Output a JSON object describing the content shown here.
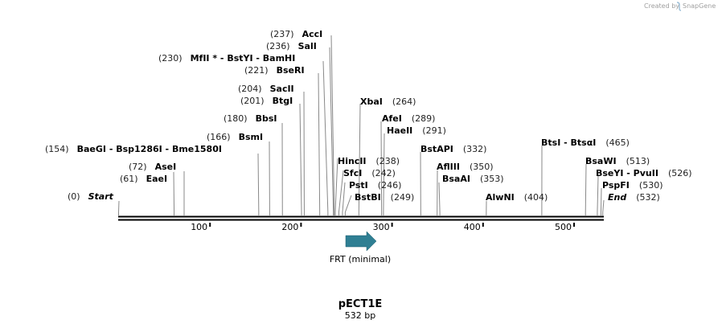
{
  "watermark": "Created by",
  "watermark_brand": "SnapGene",
  "plasmid": {
    "name": "pECT1E",
    "size_label": "532 bp",
    "length": 532
  },
  "colors": {
    "feature": "#2f7f93",
    "backbone": "#000000",
    "cutline": "#888888",
    "watermark": "#a0a0a0"
  },
  "ruler": {
    "ticks": [
      100,
      200,
      300,
      400,
      500
    ]
  },
  "feature": {
    "name": "FRT (minimal)",
    "start": 250,
    "end": 284,
    "direction": "forward"
  },
  "sites": [
    {
      "pos": "(0)",
      "name": "Start",
      "bp": 0,
      "italic": true
    },
    {
      "pos": "(61)",
      "name": "EaeI",
      "bp": 61
    },
    {
      "pos": "(72)",
      "name": "AseI",
      "bp": 72
    },
    {
      "pos": "(154)",
      "name": "BaeGI  -  Bsp1286I  -  Bme1580I",
      "bp": 154
    },
    {
      "pos": "(166)",
      "name": "BsmI",
      "bp": 166
    },
    {
      "pos": "(180)",
      "name": "BbsI",
      "bp": 180
    },
    {
      "pos": "(201)",
      "name": "BtgI",
      "bp": 201
    },
    {
      "pos": "(204)",
      "name": "SacII",
      "bp": 204
    },
    {
      "pos": "(221)",
      "name": "BseRI",
      "bp": 221
    },
    {
      "pos": "(230)",
      "name": "MfII *  -  BstYI  -  BamHI",
      "bp": 230
    },
    {
      "pos": "(236)",
      "name": "SalI",
      "bp": 236
    },
    {
      "pos": "(237)",
      "name": "AccI",
      "bp": 237
    },
    {
      "pos": "(238)",
      "name": "HincII",
      "bp": 238
    },
    {
      "pos": "(242)",
      "name": "SfcI",
      "bp": 242
    },
    {
      "pos": "(246)",
      "name": "PstI",
      "bp": 246
    },
    {
      "pos": "(249)",
      "name": "BstBI",
      "bp": 249
    },
    {
      "pos": "(264)",
      "name": "XbaI",
      "bp": 264
    },
    {
      "pos": "(289)",
      "name": "AfeI",
      "bp": 289
    },
    {
      "pos": "(291)",
      "name": "HaeII",
      "bp": 291
    },
    {
      "pos": "(332)",
      "name": "BstAPI",
      "bp": 332
    },
    {
      "pos": "(350)",
      "name": "AflIII",
      "bp": 350
    },
    {
      "pos": "(353)",
      "name": "BsaAI",
      "bp": 353
    },
    {
      "pos": "(404)",
      "name": "AlwNI",
      "bp": 404
    },
    {
      "pos": "(465)",
      "name": "BtsI  -  BtsαI",
      "bp": 465
    },
    {
      "pos": "(513)",
      "name": "BsaWI",
      "bp": 513
    },
    {
      "pos": "(526)",
      "name": "BseYI  -  PvuII",
      "bp": 526
    },
    {
      "pos": "(530)",
      "name": "PspFI",
      "bp": 530
    },
    {
      "pos": "(532)",
      "name": "End",
      "bp": 532,
      "italic": true
    }
  ]
}
